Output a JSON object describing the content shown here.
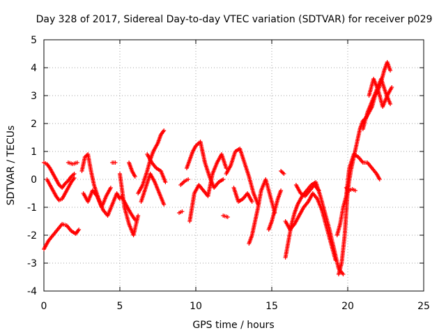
{
  "chart_data": {
    "type": "scatter",
    "title": "Day 328 of 2017, Sidereal Day-to-day VTEC variation (SDTVAR) for receiver p029",
    "xlabel": "GPS time / hours",
    "ylabel": "SDTVAR / TECUs",
    "xlim": [
      0,
      25
    ],
    "ylim": [
      -4,
      5
    ],
    "xticks": [
      0,
      5,
      10,
      15,
      20,
      25
    ],
    "yticks": [
      -4,
      -3,
      -2,
      -1,
      0,
      1,
      2,
      3,
      4,
      5
    ],
    "xtick_labels": [
      "0",
      "5",
      "10",
      "15",
      "20",
      "25"
    ],
    "ytick_labels": [
      "-4",
      "-3",
      "-2",
      "-1",
      "0",
      "1",
      "2",
      "3",
      "4",
      "5"
    ],
    "grid": true,
    "marker": "plus",
    "color": "#ff0000",
    "series": [
      {
        "name": "p029",
        "segments": [
          {
            "x": [
              0.0,
              0.3,
              0.6,
              0.9,
              1.2,
              1.5,
              1.8,
              2.1,
              2.3
            ],
            "y": [
              -2.5,
              -2.2,
              -2.0,
              -1.8,
              -1.6,
              -1.65,
              -1.85,
              -1.95,
              -1.8
            ]
          },
          {
            "x": [
              0.0,
              0.2,
              0.4,
              0.6,
              0.8,
              1.0,
              1.2,
              1.4,
              1.6,
              1.8,
              2.0
            ],
            "y": [
              0.6,
              0.55,
              0.4,
              0.2,
              0.0,
              -0.2,
              -0.3,
              -0.15,
              -0.05,
              0.1,
              0.2
            ]
          },
          {
            "x": [
              0.2,
              0.5,
              0.8,
              1.0,
              1.2,
              1.5,
              1.8,
              2.0
            ],
            "y": [
              0.0,
              -0.3,
              -0.6,
              -0.75,
              -0.7,
              -0.4,
              -0.1,
              0.05
            ]
          },
          {
            "x": [
              1.6,
              1.9,
              2.2
            ],
            "y": [
              0.6,
              0.55,
              0.6
            ]
          },
          {
            "x": [
              2.5,
              2.7,
              2.9,
              3.1,
              3.3,
              3.6,
              3.9,
              4.2,
              4.5,
              4.8,
              5.0
            ],
            "y": [
              0.3,
              0.8,
              0.9,
              0.3,
              -0.2,
              -0.7,
              -1.1,
              -1.3,
              -0.9,
              -0.5,
              -0.7
            ]
          },
          {
            "x": [
              2.6,
              2.9,
              3.2,
              3.5,
              3.8,
              4.1,
              4.4
            ],
            "y": [
              -0.5,
              -0.8,
              -0.4,
              -0.6,
              -1.0,
              -0.6,
              -0.3
            ]
          },
          {
            "x": [
              4.5,
              4.7
            ],
            "y": [
              0.6,
              0.6
            ]
          },
          {
            "x": [
              5.0,
              5.3,
              5.6,
              5.9,
              6.2
            ],
            "y": [
              0.2,
              -1.0,
              -1.6,
              -2.0,
              -1.3
            ]
          },
          {
            "x": [
              5.1,
              5.4,
              5.7,
              6.0
            ],
            "y": [
              -0.6,
              -0.9,
              -1.2,
              -1.45
            ]
          },
          {
            "x": [
              5.6,
              5.8,
              6.0
            ],
            "y": [
              0.6,
              0.3,
              0.1
            ]
          },
          {
            "x": [
              6.2,
              6.5,
              6.8,
              7.0,
              7.2,
              7.5,
              7.7,
              7.9
            ],
            "y": [
              -0.5,
              -0.2,
              0.3,
              0.7,
              1.0,
              1.3,
              1.6,
              1.75
            ]
          },
          {
            "x": [
              6.4,
              6.7,
              7.0,
              7.3,
              7.6,
              7.9
            ],
            "y": [
              -0.8,
              -0.3,
              0.2,
              -0.1,
              -0.5,
              -0.9
            ]
          },
          {
            "x": [
              6.8,
              7.1,
              7.4,
              7.7,
              8.0
            ],
            "y": [
              0.9,
              0.6,
              0.4,
              0.3,
              -0.1
            ]
          },
          {
            "x": [
              9.0,
              9.3,
              9.5
            ],
            "y": [
              -0.2,
              -0.05,
              0.0
            ]
          },
          {
            "x": [
              8.9,
              9.1
            ],
            "y": [
              -1.2,
              -1.15
            ]
          },
          {
            "x": [
              9.4,
              9.6,
              9.8,
              10.0,
              10.3,
              10.6,
              10.9,
              11.2,
              11.5,
              11.8
            ],
            "y": [
              0.4,
              0.7,
              1.0,
              1.2,
              1.35,
              0.6,
              0.1,
              -0.3,
              -0.1,
              0.0
            ]
          },
          {
            "x": [
              9.6,
              9.9,
              10.2,
              10.5,
              10.8,
              11.1,
              11.4,
              11.7,
              12.0
            ],
            "y": [
              -1.5,
              -0.5,
              -0.2,
              -0.4,
              -0.6,
              0.2,
              0.6,
              0.9,
              0.4
            ]
          },
          {
            "x": [
              12.0,
              12.3,
              12.6,
              12.9,
              13.2,
              13.5,
              13.8,
              14.1
            ],
            "y": [
              0.2,
              0.5,
              1.0,
              1.1,
              0.6,
              0.1,
              -0.5,
              -0.9
            ]
          },
          {
            "x": [
              11.8,
              12.1
            ],
            "y": [
              -1.3,
              -1.35
            ]
          },
          {
            "x": [
              12.5,
              12.8,
              13.1,
              13.4,
              13.7
            ],
            "y": [
              -0.3,
              -0.8,
              -0.7,
              -0.5,
              -0.8
            ]
          },
          {
            "x": [
              13.5,
              13.7,
              13.9,
              14.1,
              14.3,
              14.6,
              14.9,
              15.2
            ],
            "y": [
              -2.3,
              -2.0,
              -1.5,
              -1.0,
              -0.4,
              0.0,
              -0.6,
              -1.2
            ]
          },
          {
            "x": [
              14.8,
              15.0,
              15.2,
              15.4,
              15.6
            ],
            "y": [
              -1.8,
              -1.5,
              -1.1,
              -0.7,
              -0.4
            ]
          },
          {
            "x": [
              15.6,
              15.8
            ],
            "y": [
              0.3,
              0.2
            ]
          },
          {
            "x": [
              15.9,
              16.1,
              16.3,
              16.5,
              16.7,
              17.0,
              17.3,
              17.6,
              17.9,
              18.2,
              18.5,
              18.8,
              19.1,
              19.4,
              19.7
            ],
            "y": [
              -2.8,
              -2.2,
              -1.6,
              -1.2,
              -0.9,
              -0.6,
              -0.4,
              -0.2,
              -0.1,
              -0.6,
              -1.2,
              -1.8,
              -2.5,
              -3.2,
              -3.4
            ]
          },
          {
            "x": [
              15.9,
              16.2,
              16.5,
              16.8,
              17.1,
              17.4,
              17.7,
              18.0,
              18.3,
              18.6,
              18.9,
              19.2
            ],
            "y": [
              -1.5,
              -1.8,
              -1.6,
              -1.3,
              -1.0,
              -0.8,
              -0.5,
              -0.7,
              -1.1,
              -1.7,
              -2.3,
              -2.9
            ]
          },
          {
            "x": [
              16.6,
              16.9,
              17.2,
              17.5,
              17.8,
              18.1
            ],
            "y": [
              -0.2,
              -0.5,
              -0.6,
              -0.4,
              -0.2,
              -0.4
            ]
          },
          {
            "x": [
              19.4,
              19.6,
              19.8,
              20.0,
              20.2,
              20.4,
              20.6,
              20.8,
              21.0,
              21.2,
              21.4,
              21.6,
              21.8,
              22.0,
              22.2,
              22.4,
              22.6,
              22.8
            ],
            "y": [
              -3.4,
              -3.0,
              -2.0,
              -0.4,
              0.3,
              0.8,
              1.3,
              1.8,
              2.1,
              2.2,
              2.4,
              2.6,
              3.0,
              3.2,
              3.5,
              3.9,
              4.2,
              3.9
            ]
          },
          {
            "x": [
              19.3,
              19.5,
              19.7,
              19.9,
              20.1,
              20.4,
              20.7,
              21.0,
              21.3,
              21.6,
              21.9,
              22.1
            ],
            "y": [
              -2.0,
              -1.6,
              -1.0,
              -0.6,
              0.4,
              0.9,
              0.8,
              0.6,
              0.6,
              0.4,
              0.2,
              0.0
            ]
          },
          {
            "x": [
              19.9,
              20.1,
              20.3,
              20.5
            ],
            "y": [
              -0.3,
              -0.4,
              -0.35,
              -0.4
            ]
          },
          {
            "x": [
              21.0,
              21.3,
              21.6,
              21.9,
              22.2,
              22.5,
              22.8
            ],
            "y": [
              1.8,
              2.4,
              2.8,
              3.2,
              3.6,
              3.1,
              2.7
            ]
          },
          {
            "x": [
              21.4,
              21.7,
              22.0,
              22.3,
              22.6,
              22.9
            ],
            "y": [
              3.0,
              3.6,
              3.2,
              2.6,
              3.0,
              3.3
            ]
          }
        ]
      }
    ]
  }
}
